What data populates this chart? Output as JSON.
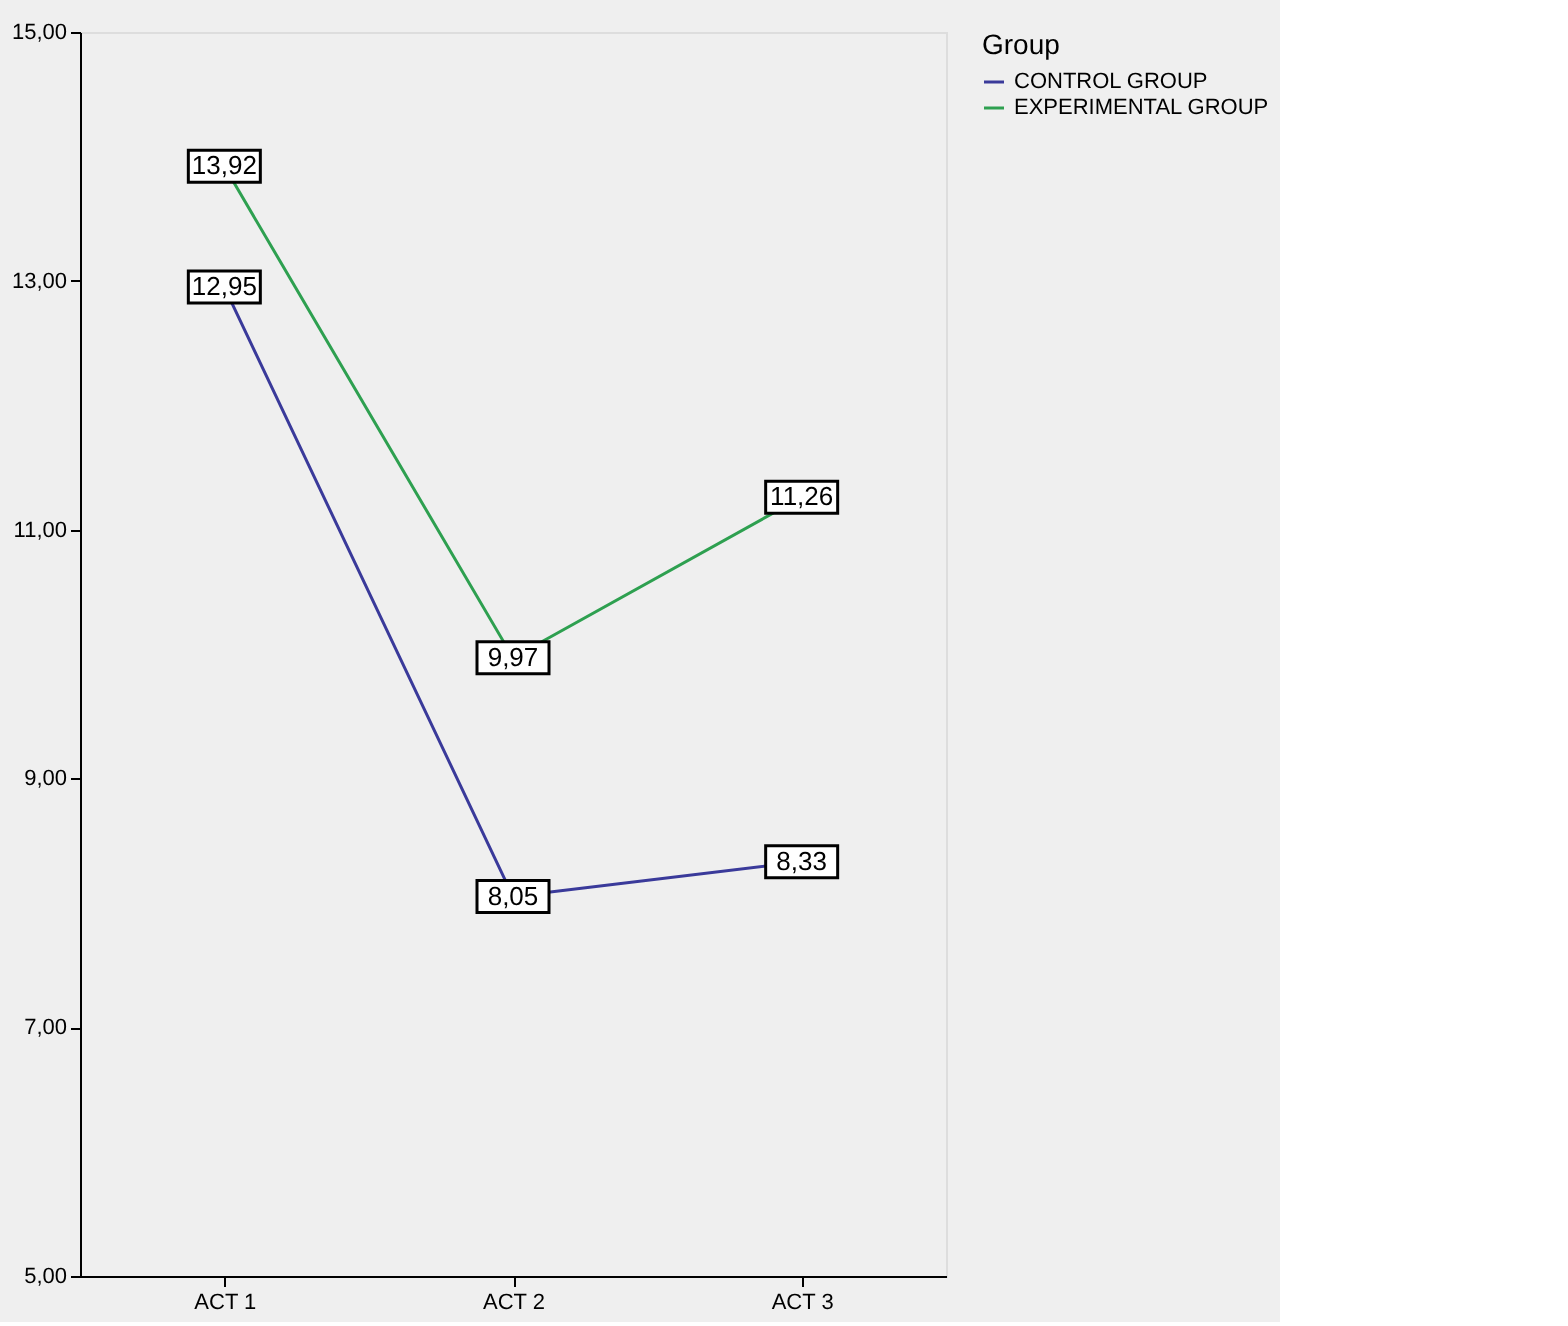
{
  "chart_data": {
    "type": "line",
    "categories": [
      "ACT 1",
      "ACT 2",
      "ACT 3"
    ],
    "series": [
      {
        "name": "CONTROL GROUP",
        "color": "#3a3a9a",
        "values": [
          12.95,
          8.05,
          8.33
        ],
        "value_labels": [
          "12,95",
          "8,05",
          "8,33"
        ]
      },
      {
        "name": "EXPERIMENTAL GROUP",
        "color": "#2ea050",
        "values": [
          13.92,
          9.97,
          11.26
        ],
        "value_labels": [
          "13,92",
          "9,97",
          "11,26"
        ]
      }
    ],
    "legend_title": "Group",
    "legend": "top right",
    "ylim": [
      5,
      15
    ],
    "yticks": [
      {
        "value": 5,
        "label": "5,00"
      },
      {
        "value": 7,
        "label": "7,00"
      },
      {
        "value": 9,
        "label": "9,00"
      },
      {
        "value": 11,
        "label": "11,00"
      },
      {
        "value": 13,
        "label": "13,00"
      },
      {
        "value": 15,
        "label": "15,00"
      }
    ],
    "grid": false,
    "marker": "square",
    "line_style": "solid"
  }
}
